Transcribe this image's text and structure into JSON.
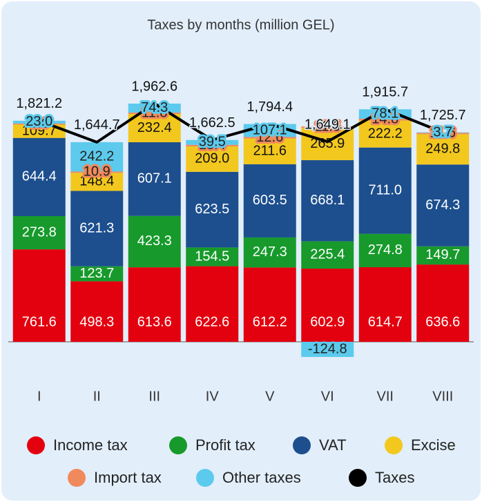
{
  "chart_data": {
    "type": "bar",
    "stacked": true,
    "title": "Taxes by months (million GEL)",
    "categories": [
      "I",
      "II",
      "III",
      "IV",
      "V",
      "VI",
      "VII",
      "VIII"
    ],
    "series": [
      {
        "name": "Income tax",
        "color": "#e3000f",
        "values": [
          761.6,
          498.3,
          613.6,
          622.6,
          612.2,
          602.9,
          614.7,
          636.6
        ],
        "value_labels": [
          "761.6",
          "498.3",
          "613.6",
          "622.6",
          "612.2",
          "602.9",
          "614.7",
          "636.6"
        ]
      },
      {
        "name": "Profit tax",
        "color": "#179a2b",
        "values": [
          273.8,
          123.7,
          423.3,
          154.5,
          247.3,
          225.4,
          274.8,
          149.7
        ],
        "value_labels": [
          "273.8",
          "123.7",
          "423.3",
          "154.5",
          "247.3",
          "225.4",
          "274.8",
          "149.7"
        ]
      },
      {
        "name": "VAT",
        "color": "#1d4f8e",
        "values": [
          644.4,
          621.3,
          607.1,
          623.5,
          603.5,
          668.1,
          711.0,
          674.3
        ],
        "value_labels": [
          "644.4",
          "621.3",
          "607.1",
          "623.5",
          "603.5",
          "668.1",
          "711.0",
          "674.3"
        ]
      },
      {
        "name": "Excise",
        "color": "#f2c81e",
        "values": [
          109.7,
          148.4,
          232.4,
          209.0,
          211.6,
          265.9,
          222.2,
          249.8
        ],
        "value_labels": [
          "109.7",
          "148.4",
          "232.4",
          "209.0",
          "211.6",
          "265.9",
          "222.2",
          "249.8"
        ]
      },
      {
        "name": "Import tax",
        "color": "#f08a5d",
        "values": [
          8.6,
          10.9,
          11.8,
          13.4,
          12.6,
          11.5,
          14.8,
          11.6
        ],
        "value_labels": [
          "8.6",
          "10.9",
          "11.8",
          "13.4",
          "12.6",
          "11.5",
          "14.8",
          "11.6"
        ]
      },
      {
        "name": "Other taxes",
        "color": "#5ccaec",
        "values": [
          23.0,
          242.2,
          74.3,
          39.5,
          107.1,
          -124.8,
          78.1,
          3.7
        ],
        "value_labels": [
          "23.0",
          "242.2",
          "74.3",
          "39.5",
          "107.1",
          "-124.8",
          "78.1",
          "3.7"
        ]
      },
      {
        "name": "Taxes",
        "color": "#000000",
        "type": "line",
        "values": [
          1821.2,
          1644.7,
          1962.6,
          1662.5,
          1794.4,
          1649.1,
          1915.7,
          1725.7
        ],
        "value_labels": [
          "1,821.2",
          "1,644.7",
          "1,962.6",
          "1,662.5",
          "1,794.4",
          "1,649.1",
          "1,915.7",
          "1,725.7"
        ]
      }
    ],
    "legend": "bottom"
  }
}
